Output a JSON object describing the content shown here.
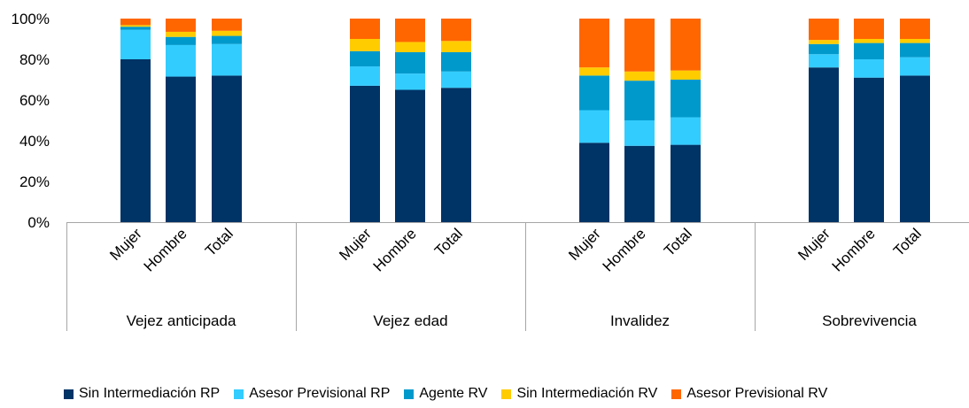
{
  "chart_data": {
    "type": "bar",
    "stacked": true,
    "percent_stacked": true,
    "groups": [
      {
        "label": "Vejez anticipada",
        "categories": [
          "Mujer",
          "Hombre",
          "Total"
        ]
      },
      {
        "label": "Vejez edad",
        "categories": [
          "Mujer",
          "Hombre",
          "Total"
        ]
      },
      {
        "label": "Invalidez",
        "categories": [
          "Mujer",
          "Hombre",
          "Total"
        ]
      },
      {
        "label": "Sobrevivencia",
        "categories": [
          "Mujer",
          "Hombre",
          "Total"
        ]
      }
    ],
    "series": [
      {
        "name": "Sin Intermediación RP",
        "color": "#003366",
        "values": [
          80,
          71.5,
          72,
          67,
          65,
          66,
          39,
          37.5,
          38,
          76,
          71,
          72
        ]
      },
      {
        "name": "Asesor Previsional RP",
        "color": "#33CCFF",
        "values": [
          14.5,
          15.5,
          15.5,
          9.5,
          8,
          8,
          16,
          12.5,
          13.5,
          6.5,
          9,
          9
        ]
      },
      {
        "name": "Agente RV",
        "color": "#0099CC",
        "values": [
          1.5,
          4,
          4,
          7.5,
          10.5,
          9.5,
          17,
          19.5,
          18.5,
          5,
          8,
          7
        ]
      },
      {
        "name": "Sin Intermediación RV",
        "color": "#FFCC00",
        "values": [
          0.8,
          2.5,
          2.5,
          6,
          5,
          5.5,
          4,
          4.5,
          4.5,
          2,
          2,
          2
        ]
      },
      {
        "name": "Asesor Previsional RV",
        "color": "#FF6600",
        "values": [
          3.2,
          6.5,
          6,
          10,
          11.5,
          11,
          24,
          26,
          25.5,
          10.5,
          10,
          10
        ]
      }
    ],
    "ylim": [
      0,
      100
    ],
    "yticks": [
      "0%",
      "20%",
      "40%",
      "60%",
      "80%",
      "100%"
    ],
    "grid": false,
    "legend_position": "bottom"
  }
}
